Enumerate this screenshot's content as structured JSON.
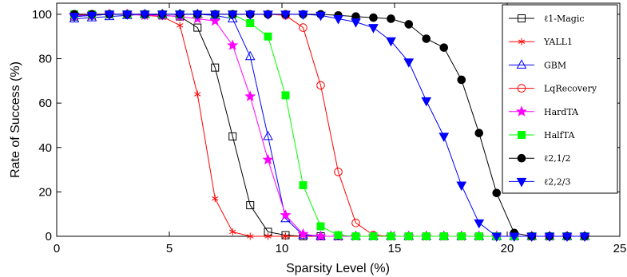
{
  "chart_data": {
    "type": "line",
    "xlabel": "Sparsity Level (%)",
    "ylabel": "Rate of Success (%)",
    "xlim": [
      0,
      25
    ],
    "ylim": [
      0,
      105
    ],
    "xticks": [
      0,
      5,
      10,
      15,
      20,
      25
    ],
    "yticks": [
      0,
      20,
      40,
      60,
      80,
      100
    ],
    "grid": false,
    "legend_position": "right",
    "x": [
      0.78,
      1.56,
      2.34,
      3.13,
      3.91,
      4.69,
      5.47,
      6.25,
      7.03,
      7.81,
      8.59,
      9.38,
      10.16,
      10.94,
      11.72,
      12.5,
      13.28,
      14.06,
      14.84,
      15.63,
      16.41,
      17.19,
      17.97,
      18.75,
      19.53,
      20.31,
      21.09,
      21.88,
      22.66,
      23.44
    ],
    "series": [
      {
        "name": "ℓ1-Magic",
        "color": "#000000",
        "marker": "square",
        "filled": false,
        "values": [
          99,
          99.5,
          100,
          100,
          100,
          99.5,
          99,
          94,
          76,
          45,
          14,
          2,
          0.5,
          0,
          0,
          0,
          0,
          0,
          0,
          0,
          0,
          0,
          0,
          0,
          0,
          0,
          0,
          0,
          0,
          0
        ]
      },
      {
        "name": "YALL1",
        "color": "#ff0000",
        "marker": "asterisk",
        "filled": false,
        "values": [
          99.5,
          100,
          100,
          100,
          99.5,
          99,
          95,
          64,
          17,
          2,
          0,
          0,
          0,
          0,
          0,
          0,
          0,
          0,
          0,
          0,
          0,
          0,
          0,
          0,
          0,
          0,
          0,
          0,
          0,
          0
        ]
      },
      {
        "name": "GBM",
        "color": "#0000ff",
        "marker": "triangle-up",
        "filled": false,
        "values": [
          98,
          98.5,
          99,
          99.5,
          100,
          100,
          100,
          100,
          99.5,
          98,
          81,
          45,
          8,
          0.5,
          0,
          0,
          0,
          0,
          0,
          0,
          0,
          0,
          0,
          0,
          0,
          0,
          0,
          0,
          0,
          0
        ]
      },
      {
        "name": "LqRecovery",
        "color": "#ff0000",
        "marker": "circle",
        "filled": false,
        "values": [
          100,
          100,
          100,
          100,
          100,
          100,
          100,
          100,
          100,
          100,
          100,
          100,
          99.5,
          94,
          68,
          29,
          6,
          0.5,
          0,
          0,
          0,
          0,
          0,
          0,
          0,
          0,
          0,
          0,
          0,
          0
        ]
      },
      {
        "name": "HardTA",
        "color": "#ff00ff",
        "marker": "star",
        "filled": true,
        "values": [
          99.5,
          99.5,
          100,
          100,
          99.5,
          99.5,
          99,
          98,
          97,
          86,
          63,
          34.5,
          9.5,
          1,
          0,
          0,
          0,
          0,
          0,
          0,
          0,
          0,
          0,
          0,
          0,
          0,
          0,
          0,
          0,
          0
        ]
      },
      {
        "name": "HalfTA",
        "color": "#00ff00",
        "marker": "square",
        "filled": true,
        "values": [
          100,
          100,
          100,
          100,
          100,
          100,
          100,
          100,
          100,
          100,
          96,
          90,
          63.5,
          23,
          4.5,
          0.5,
          0,
          0,
          0,
          0,
          0,
          0,
          0,
          0,
          0,
          0,
          0,
          0,
          0,
          0
        ]
      },
      {
        "name": "ℓ2,1/2",
        "color": "#000000",
        "marker": "circle",
        "filled": true,
        "values": [
          100,
          100,
          100,
          100,
          100,
          100,
          100,
          100,
          100,
          100,
          100,
          100,
          100,
          100,
          100,
          99.5,
          99,
          98.5,
          98,
          95.5,
          89,
          85,
          70.5,
          46.5,
          19.5,
          1.5,
          0,
          0,
          0,
          0
        ]
      },
      {
        "name": "ℓ2,2/3",
        "color": "#0000ff",
        "marker": "triangle-down",
        "filled": true,
        "values": [
          99,
          99.5,
          100,
          100,
          100,
          100,
          100,
          100,
          100,
          100,
          100,
          100,
          100,
          100,
          99.5,
          98,
          96.5,
          94,
          88,
          78.5,
          61,
          45,
          23,
          6,
          0,
          0,
          0,
          0,
          0,
          0
        ]
      }
    ]
  }
}
